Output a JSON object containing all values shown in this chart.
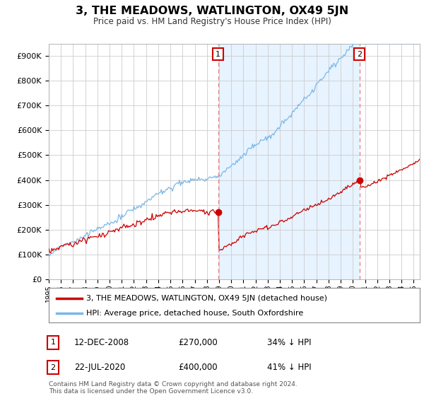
{
  "title": "3, THE MEADOWS, WATLINGTON, OX49 5JN",
  "subtitle": "Price paid vs. HM Land Registry's House Price Index (HPI)",
  "ylabel_ticks": [
    "£0",
    "£100K",
    "£200K",
    "£300K",
    "£400K",
    "£500K",
    "£600K",
    "£700K",
    "£800K",
    "£900K"
  ],
  "ytick_values": [
    0,
    100000,
    200000,
    300000,
    400000,
    500000,
    600000,
    700000,
    800000,
    900000
  ],
  "ylim": [
    0,
    950000
  ],
  "xlim_start": 1995.0,
  "xlim_end": 2025.5,
  "hpi_color": "#7ab8e8",
  "price_color": "#cc0000",
  "shade_color": "#ddeeff",
  "marker1_year": 2008.917,
  "marker1_price": 270000,
  "marker2_year": 2020.542,
  "marker2_price": 400000,
  "marker1_label": "12-DEC-2008",
  "marker1_amount": "£270,000",
  "marker1_pct": "34% ↓ HPI",
  "marker2_label": "22-JUL-2020",
  "marker2_amount": "£400,000",
  "marker2_pct": "41% ↓ HPI",
  "legend_line1": "3, THE MEADOWS, WATLINGTON, OX49 5JN (detached house)",
  "legend_line2": "HPI: Average price, detached house, South Oxfordshire",
  "footnote": "Contains HM Land Registry data © Crown copyright and database right 2024.\nThis data is licensed under the Open Government Licence v3.0.",
  "background_color": "#ffffff",
  "grid_color": "#cccccc"
}
